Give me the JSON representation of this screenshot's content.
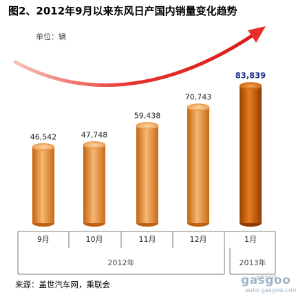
{
  "title": "图2、2012年9月以来东风日产国内销量变化趋势",
  "unit_label": "单位：辆",
  "source": "来源：盖世汽车网，乘联会",
  "watermark": {
    "brand": "gasgoo",
    "subtitle": "盖世汽车网",
    "url": "auto.gasgoo.com"
  },
  "colors": {
    "bar_light": "#f2a85a",
    "bar_mid": "#e8892c",
    "bar_dark": "#c06010",
    "highlight_mid": "#d8680a",
    "highlight_dark": "#8c3a00",
    "arrow": "#e8302a",
    "value_normal": "#222222",
    "value_highlight": "#1f2f8c"
  },
  "chart_data": {
    "type": "bar",
    "categories": [
      "9月",
      "10月",
      "11月",
      "12月",
      "1月"
    ],
    "values": [
      46542,
      47748,
      59438,
      70743,
      83839
    ],
    "value_labels": [
      "46,542",
      "47,748",
      "59,438",
      "70,743",
      "83,839"
    ],
    "highlight_index": 4,
    "year_groups": [
      {
        "label": "2012年",
        "categories": [
          "9月",
          "10月",
          "11月",
          "12月"
        ]
      },
      {
        "label": "2013年",
        "categories": [
          "1月"
        ]
      }
    ],
    "trend_arrow": true,
    "grid": false,
    "ylim": [
      0,
      95000
    ]
  }
}
